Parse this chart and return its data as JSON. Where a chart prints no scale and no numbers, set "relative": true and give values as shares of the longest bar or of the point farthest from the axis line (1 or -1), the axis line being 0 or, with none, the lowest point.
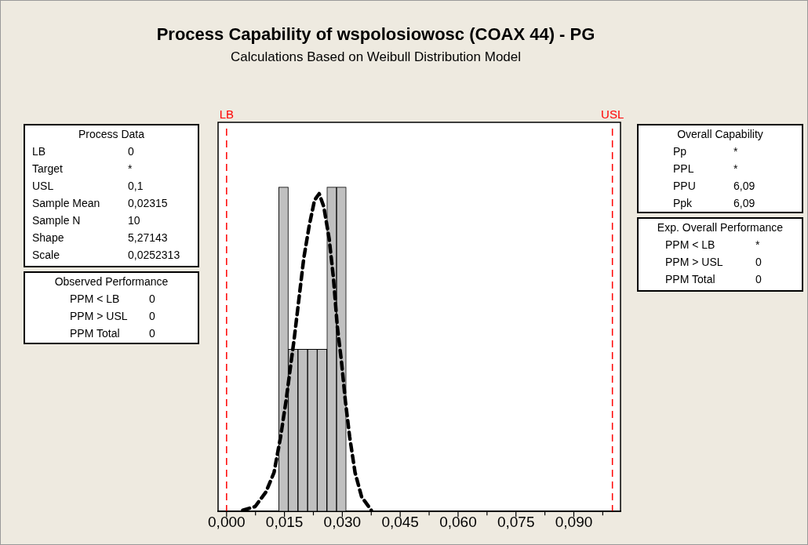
{
  "chart_data": {
    "type": "histogram",
    "title": "Process Capability of wspolosiowosc (COAX 44) - PG",
    "subtitle": "Calculations Based on Weibull Distribution Model",
    "relative": true,
    "color": "#c0c0c0",
    "bins": [
      0.0135,
      0.016,
      0.0185,
      0.021,
      0.0235,
      0.026,
      0.0285,
      0.031
    ],
    "values": [
      1,
      0.5,
      0.5,
      0.5,
      0.5,
      1,
      1
    ],
    "series": [
      {
        "type": "line",
        "color": "#000000",
        "line_style": "dashed",
        "marker": "none",
        "x": [
          0.0042,
          0.0074,
          0.0102,
          0.0123,
          0.014,
          0.0154,
          0.0165,
          0.0175,
          0.0186,
          0.02,
          0.0214,
          0.0228,
          0.024,
          0.0252,
          0.0266,
          0.0277,
          0.0287,
          0.0298,
          0.0308,
          0.0319,
          0.0333,
          0.035,
          0.0375
        ],
        "values": [
          0.004,
          0.015,
          0.06,
          0.12,
          0.23,
          0.34,
          0.44,
          0.53,
          0.64,
          0.78,
          0.88,
          0.96,
          0.98,
          0.94,
          0.84,
          0.72,
          0.57,
          0.46,
          0.34,
          0.23,
          0.12,
          0.045,
          0.004
        ]
      }
    ],
    "xlim": [
      -0.0022,
      0.1021
    ],
    "xticks": [
      {
        "value": 0,
        "label": "0,000"
      },
      {
        "value": 0.0075,
        "label": null
      },
      {
        "value": 0.015,
        "label": "0,015"
      },
      {
        "value": 0.0225,
        "label": null
      },
      {
        "value": 0.03,
        "label": "0,030"
      },
      {
        "value": 0.0375,
        "label": null
      },
      {
        "value": 0.045,
        "label": "0,045"
      },
      {
        "value": 0.0525,
        "label": null
      },
      {
        "value": 0.06,
        "label": "0,060"
      },
      {
        "value": 0.0675,
        "label": null
      },
      {
        "value": 0.075,
        "label": "0,075"
      },
      {
        "value": 0.0825,
        "label": null
      },
      {
        "value": 0.09,
        "label": "0,090"
      },
      {
        "value": 0.0975,
        "label": null
      }
    ],
    "ref_lines": [
      {
        "axis": "x",
        "value": 0,
        "label": "LB",
        "color": "#ff0000",
        "line_style": "dashed"
      },
      {
        "axis": "x",
        "value": 0.1,
        "label": "USL",
        "color": "#ff0000",
        "line_style": "dashed"
      }
    ],
    "annotations": [
      "Process Data",
      "LB",
      "0",
      "Target",
      "*",
      "USL",
      "0,1",
      "Sample Mean",
      "0,02315",
      "Sample N",
      "10",
      "Shape",
      "5,27143",
      "Scale",
      "0,0252313",
      "Observed Performance",
      "PPM < LB",
      "0",
      "PPM > USL",
      "0",
      "PPM Total",
      "0",
      "Overall Capability",
      "Pp",
      "*",
      "PPL",
      "*",
      "PPU",
      "6,09",
      "Ppk",
      "6,09",
      "Exp. Overall Performance",
      "PPM < LB",
      "*",
      "PPM > USL",
      "0",
      "PPM Total",
      "0"
    ]
  }
}
